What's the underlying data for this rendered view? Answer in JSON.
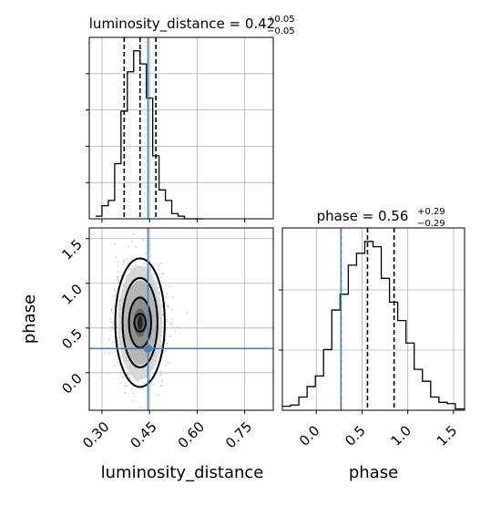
{
  "chart_data": [
    {
      "type": "histogram",
      "panel": "luminosity_distance-marginal",
      "title_param": "luminosity_distance",
      "title_median": "0.42",
      "title_plus": "+0.05",
      "title_minus": "−0.05",
      "xlim": [
        0.26,
        0.84
      ],
      "bins": [
        0.28,
        0.3,
        0.32,
        0.34,
        0.36,
        0.38,
        0.4,
        0.42,
        0.44,
        0.46,
        0.48,
        0.5,
        0.52,
        0.54,
        0.56,
        0.58,
        0.6,
        0.62
      ],
      "counts": [
        1,
        5,
        7,
        21,
        41,
        56,
        64,
        59,
        46,
        24,
        11,
        7,
        2,
        1,
        0,
        0,
        0
      ],
      "quantiles": [
        0.37,
        0.42,
        0.47
      ],
      "truth": 0.445
    },
    {
      "type": "histogram",
      "panel": "phase-marginal",
      "title_param": "phase",
      "title_median": "0.56",
      "title_plus": "+0.29",
      "title_minus": "−0.29",
      "xlim": [
        -0.37,
        1.62
      ],
      "bins": [
        -0.37,
        -0.28,
        -0.19,
        -0.1,
        -0.01,
        0.08,
        0.17,
        0.26,
        0.35,
        0.44,
        0.53,
        0.62,
        0.71,
        0.8,
        0.89,
        0.98,
        1.07,
        1.16,
        1.25,
        1.34,
        1.43,
        1.52,
        1.62
      ],
      "counts": [
        3,
        4,
        10,
        18,
        26,
        46,
        76,
        88,
        110,
        119,
        128,
        124,
        100,
        82,
        68,
        51,
        31,
        22,
        10,
        6,
        5,
        1
      ],
      "quantiles": [
        0.27,
        0.56,
        0.85
      ],
      "truth": 0.27
    },
    {
      "type": "scatter",
      "panel": "2d-density",
      "xlabel": "luminosity_distance",
      "ylabel": "phase",
      "xlim": [
        0.26,
        0.84
      ],
      "ylim": [
        -0.42,
        1.62
      ],
      "xticks": [
        "0.30",
        "0.45",
        "0.60",
        "0.75"
      ],
      "yticks": [
        "0.0",
        "0.5",
        "1.0",
        "1.5"
      ],
      "xtick_values": [
        0.3,
        0.45,
        0.6,
        0.75
      ],
      "ytick_values": [
        0.0,
        0.5,
        1.0,
        1.5
      ],
      "phase_ticks": [
        "0.0",
        "0.5",
        "1.0",
        "1.5"
      ],
      "phase_tick_values": [
        0.0,
        0.5,
        1.0,
        1.5
      ],
      "density_center": [
        0.42,
        0.56
      ],
      "contour_levels": [
        {
          "rx": 0.018,
          "ry": 0.1
        },
        {
          "rx": 0.035,
          "ry": 0.28
        },
        {
          "rx": 0.055,
          "ry": 0.5
        },
        {
          "rx": 0.078,
          "ry": 0.72
        }
      ],
      "truth": [
        0.445,
        0.27
      ]
    }
  ]
}
